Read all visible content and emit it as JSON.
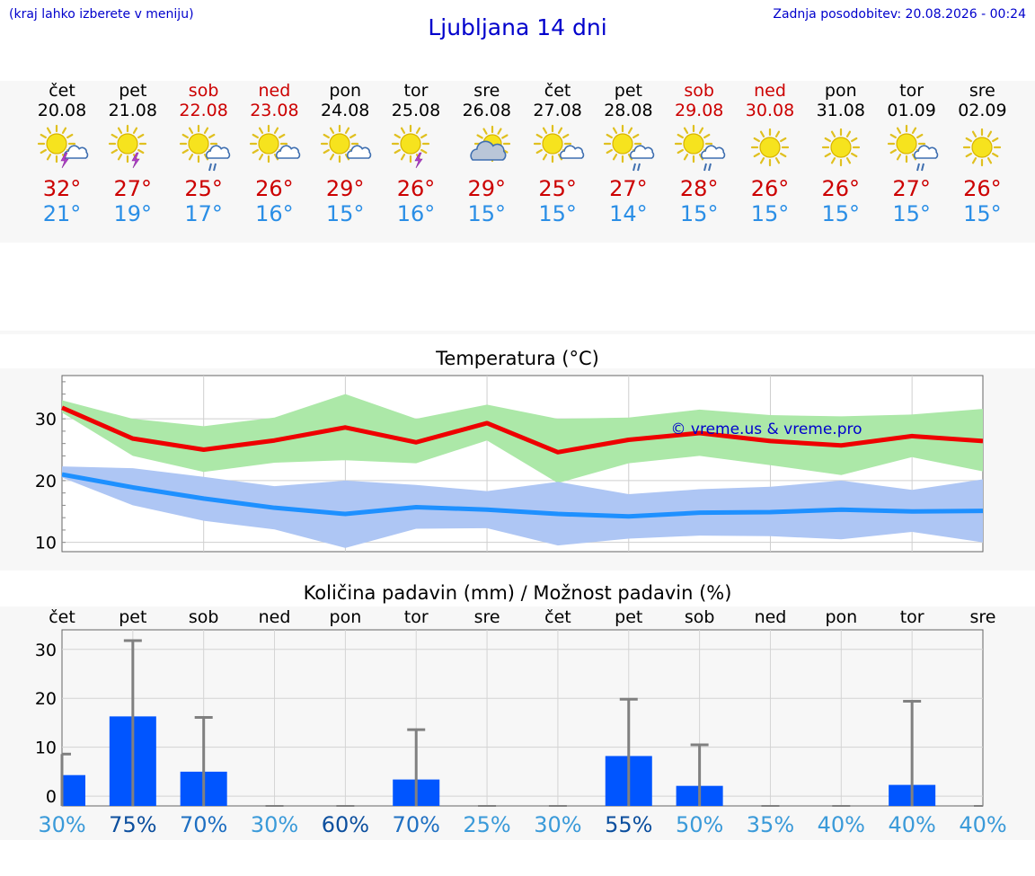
{
  "header": {
    "hint": "(kraj lahko izberete v meniju)",
    "title": "Ljubljana 14 dni",
    "updated": "Zadnja posodobitev: 20.08.2026 - 00:24"
  },
  "days": [
    {
      "name": "čet",
      "date": "20.08",
      "icon": "sun-cloud-thunder-icon",
      "max": "32°",
      "min": "21°",
      "weekend": false
    },
    {
      "name": "pet",
      "date": "21.08",
      "icon": "sun-thunder-icon",
      "max": "27°",
      "min": "19°",
      "weekend": false
    },
    {
      "name": "sob",
      "date": "22.08",
      "icon": "sun-cloud-rain-icon",
      "max": "25°",
      "min": "17°",
      "weekend": true
    },
    {
      "name": "ned",
      "date": "23.08",
      "icon": "sun-cloud-icon",
      "max": "26°",
      "min": "16°",
      "weekend": true
    },
    {
      "name": "pon",
      "date": "24.08",
      "icon": "sun-cloud-icon",
      "max": "29°",
      "min": "15°",
      "weekend": false
    },
    {
      "name": "tor",
      "date": "25.08",
      "icon": "sun-thunder-icon",
      "max": "26°",
      "min": "16°",
      "weekend": false
    },
    {
      "name": "sre",
      "date": "26.08",
      "icon": "sun-behind-cloud-icon",
      "max": "29°",
      "min": "15°",
      "weekend": false
    },
    {
      "name": "čet",
      "date": "27.08",
      "icon": "sun-cloud-icon",
      "max": "25°",
      "min": "15°",
      "weekend": false
    },
    {
      "name": "pet",
      "date": "28.08",
      "icon": "sun-cloud-rain-icon",
      "max": "27°",
      "min": "14°",
      "weekend": false
    },
    {
      "name": "sob",
      "date": "29.08",
      "icon": "sun-cloud-rain-icon",
      "max": "28°",
      "min": "15°",
      "weekend": true
    },
    {
      "name": "ned",
      "date": "30.08",
      "icon": "sun-icon",
      "max": "26°",
      "min": "15°",
      "weekend": true
    },
    {
      "name": "pon",
      "date": "31.08",
      "icon": "sun-icon",
      "max": "26°",
      "min": "15°",
      "weekend": false
    },
    {
      "name": "tor",
      "date": "01.09",
      "icon": "sun-cloud-rain-icon",
      "max": "27°",
      "min": "15°",
      "weekend": false
    },
    {
      "name": "sre",
      "date": "02.09",
      "icon": "sun-icon",
      "max": "26°",
      "min": "15°",
      "weekend": false
    }
  ],
  "colors": {
    "max_line": "#ee0000",
    "max_band": "#ace8a8",
    "min_line": "#1e90ff",
    "min_band": "#aec6f4",
    "bar": "#0055ff",
    "error": "#808080",
    "red": "#cc0000",
    "blue": "#2a8ee6"
  },
  "chart_data": [
    {
      "type": "line",
      "title": "Temperatura (°C)",
      "watermark": "© vreme.us & vreme.pro",
      "x": [
        "20.08",
        "21.08",
        "22.08",
        "23.08",
        "24.08",
        "25.08",
        "26.08",
        "27.08",
        "28.08",
        "29.08",
        "30.08",
        "31.08",
        "01.09",
        "02.09"
      ],
      "ylim": [
        8.5,
        37
      ],
      "yticks": [
        10,
        20,
        30
      ],
      "grid": true,
      "series": [
        {
          "role": "max",
          "values": [
            31.8,
            26.8,
            25.0,
            26.5,
            28.6,
            26.2,
            29.3,
            24.6,
            26.6,
            27.7,
            26.4,
            25.7,
            27.2,
            26.4
          ],
          "band_high": [
            33.0,
            30.0,
            28.8,
            30.2,
            34.0,
            30.0,
            32.3,
            30.0,
            30.2,
            31.5,
            30.6,
            30.4,
            30.7,
            31.6
          ],
          "band_low": [
            31.0,
            24.0,
            21.4,
            22.9,
            23.3,
            22.8,
            26.5,
            19.6,
            22.8,
            24.0,
            22.5,
            20.9,
            23.8,
            21.5
          ]
        },
        {
          "role": "min",
          "values": [
            21.0,
            18.9,
            17.1,
            15.6,
            14.6,
            15.7,
            15.3,
            14.6,
            14.2,
            14.8,
            14.9,
            15.3,
            15.0,
            15.1
          ],
          "band_high": [
            22.3,
            22.0,
            20.6,
            19.1,
            20.0,
            19.3,
            18.3,
            19.8,
            17.8,
            18.6,
            19.0,
            20.0,
            18.5,
            20.2
          ],
          "band_low": [
            20.5,
            16.0,
            13.5,
            12.1,
            9.1,
            12.2,
            12.3,
            9.5,
            10.6,
            11.1,
            11.0,
            10.5,
            11.7,
            10.0
          ]
        }
      ]
    },
    {
      "type": "bar",
      "title": "Količina padavin (mm) / Možnost padavin (%)",
      "categories": [
        "čet",
        "pet",
        "sob",
        "ned",
        "pon",
        "tor",
        "sre",
        "čet",
        "pet",
        "sob",
        "ned",
        "pon",
        "tor",
        "sre"
      ],
      "values": [
        4.3,
        16.3,
        5.0,
        0,
        0,
        3.4,
        0,
        0,
        8.2,
        2.1,
        0,
        0,
        2.3,
        0
      ],
      "error_high": [
        8.6,
        31.8,
        16.1,
        0,
        0,
        13.6,
        0,
        0,
        19.8,
        10.5,
        0,
        0,
        19.4,
        0
      ],
      "probability": [
        "30%",
        "75%",
        "70%",
        "30%",
        "60%",
        "70%",
        "25%",
        "30%",
        "55%",
        "50%",
        "35%",
        "40%",
        "40%",
        "40%"
      ],
      "probability_level": [
        "low",
        "high",
        "mid",
        "low",
        "high",
        "mid",
        "low",
        "low",
        "high",
        "low",
        "low",
        "low",
        "low",
        "low"
      ],
      "ylim": [
        -2,
        34
      ],
      "yticks": [
        0,
        10,
        20,
        30
      ],
      "grid": true
    }
  ]
}
